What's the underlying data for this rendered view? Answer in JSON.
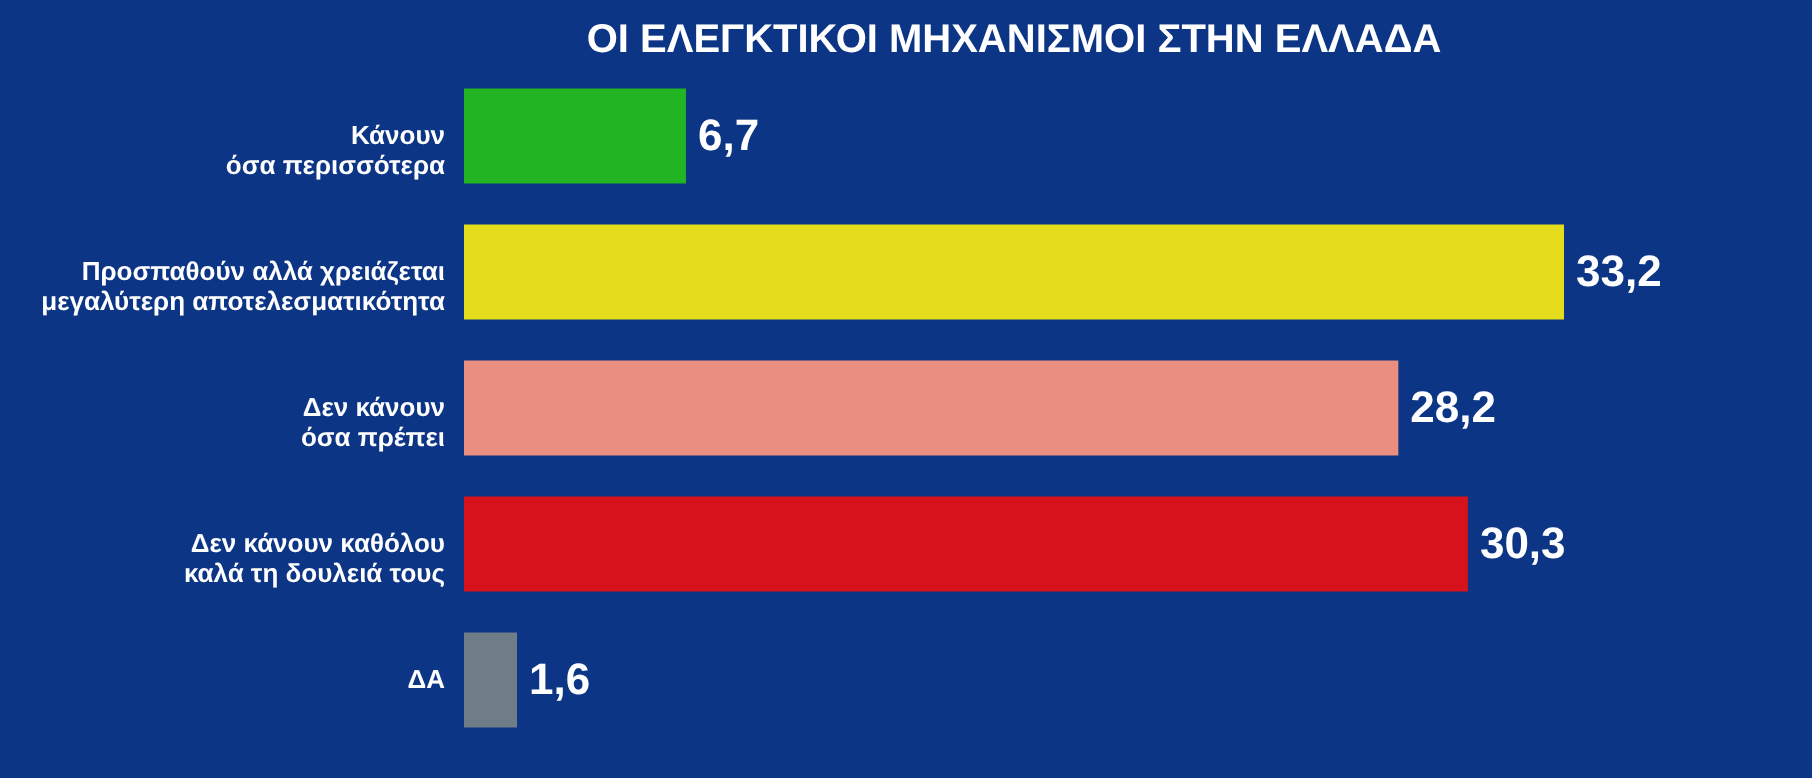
{
  "chart_data": {
    "type": "bar",
    "orientation": "horizontal",
    "title": "ΟΙ ΕΛΕΓΚΤΙΚΟΙ ΜΗΧΑΝΙΣΜΟΙ ΣΤΗΝ ΕΛΛΑΔΑ",
    "categories": [
      "Κάνουν\nόσα περισσότερα",
      "Προσπαθούν αλλά χρειάζεται\nμεγαλύτερη αποτελεσματικότητα",
      "Δεν κάνουν\nόσα πρέπει",
      "Δεν κάνουν καθόλου\nκαλά τη δουλειά τους",
      "ΔΑ"
    ],
    "values": [
      6.7,
      33.2,
      28.2,
      30.3,
      1.6
    ],
    "colors": [
      "#22b422",
      "#e4dc1c",
      "#ea8e7f",
      "#d8121c",
      "#6e7d88"
    ],
    "value_labels": [
      "6,7",
      "33,2",
      "28,2",
      "30,3",
      "1,6"
    ],
    "tick_labels": "y"
  }
}
